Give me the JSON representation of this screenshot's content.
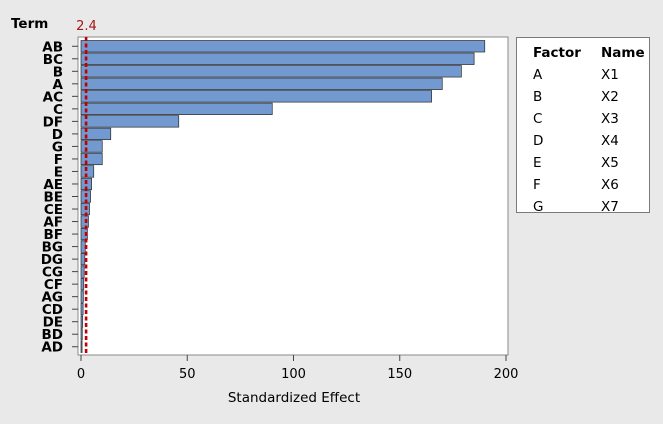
{
  "chart_data": {
    "type": "bar",
    "orientation": "horizontal",
    "title": "",
    "ylabel": "Term",
    "xlabel": "Standardized Effect",
    "categories": [
      "AB",
      "BC",
      "B",
      "A",
      "AC",
      "C",
      "DF",
      "D",
      "G",
      "F",
      "E",
      "AE",
      "BE",
      "CE",
      "AF",
      "BF",
      "BG",
      "DG",
      "CG",
      "CF",
      "AG",
      "CD",
      "DE",
      "BD",
      "AD"
    ],
    "values": [
      190,
      185,
      179,
      170,
      165,
      90,
      46,
      14,
      10,
      10,
      6,
      5,
      4.5,
      4,
      3.5,
      3,
      2,
      1.8,
      1.5,
      1.3,
      1.1,
      1,
      0.8,
      0.6,
      0.5
    ],
    "xlim": [
      0,
      200
    ],
    "xticks": [
      0,
      50,
      100,
      150,
      200
    ],
    "xtick_labels": [
      "0",
      "50",
      "100",
      "150",
      "200"
    ],
    "reference_line": {
      "value": 2.4,
      "label": "2.4"
    },
    "bar_color": "#7399d1",
    "reference_color": "#c00000"
  },
  "legend": {
    "factor_header": "Factor",
    "name_header": "Name",
    "rows": [
      {
        "factor": "A",
        "name": "X1"
      },
      {
        "factor": "B",
        "name": "X2"
      },
      {
        "factor": "C",
        "name": "X3"
      },
      {
        "factor": "D",
        "name": "X4"
      },
      {
        "factor": "E",
        "name": "X5"
      },
      {
        "factor": "F",
        "name": "X6"
      },
      {
        "factor": "G",
        "name": "X7"
      }
    ]
  }
}
